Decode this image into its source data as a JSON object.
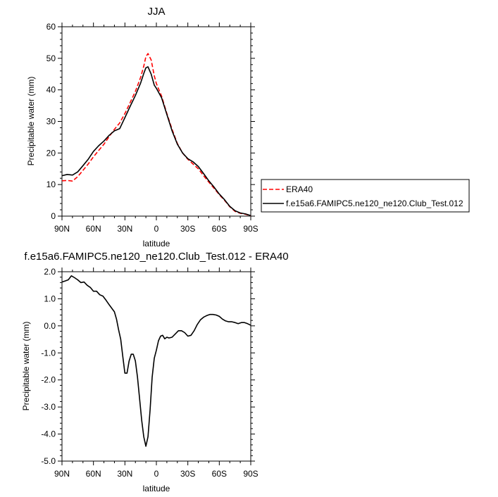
{
  "chart_data": [
    {
      "type": "line",
      "title": "JJA",
      "xlabel": "latitude",
      "ylabel": "Precipitable water (mm)",
      "xlim": [
        90,
        -90
      ],
      "ylim": [
        0,
        60
      ],
      "xticks": [
        90,
        60,
        30,
        0,
        -30,
        -60,
        -90
      ],
      "xtick_labels": [
        "90N",
        "60N",
        "30N",
        "0",
        "30S",
        "60S",
        "90S"
      ],
      "yticks": [
        0,
        10,
        20,
        30,
        40,
        50,
        60
      ],
      "ytick_labels": [
        "0",
        "10",
        "20",
        "30",
        "40",
        "50",
        "60"
      ],
      "legend": "outside-right",
      "series": [
        {
          "name": "ERA40",
          "color": "#ff0000",
          "dash": "dashed",
          "x": [
            90,
            85,
            80,
            75,
            70,
            65,
            60,
            55,
            50,
            45,
            40,
            35,
            30,
            25,
            20,
            15,
            12,
            10,
            8,
            5,
            2,
            0,
            -5,
            -10,
            -15,
            -20,
            -25,
            -30,
            -35,
            -40,
            -45,
            -50,
            -55,
            -60,
            -65,
            -70,
            -75,
            -80,
            -85,
            -90
          ],
          "y": [
            11.2,
            11.3,
            11.1,
            12.5,
            14.5,
            16.5,
            18.8,
            20.8,
            22.8,
            25.2,
            27.5,
            29.5,
            32.5,
            36,
            39.5,
            44,
            47.5,
            50.5,
            51.5,
            49.5,
            44.5,
            42,
            38,
            32.5,
            27.5,
            23,
            20,
            18,
            16.5,
            15,
            12.8,
            10.8,
            8.8,
            6.8,
            5,
            3,
            1.5,
            0.9,
            0.6,
            0.1
          ]
        },
        {
          "name": "f.e15a6.FAMIPC5.ne120_ne120.Club_Test.012",
          "color": "#000000",
          "dash": "solid",
          "x": [
            90,
            85,
            80,
            75,
            70,
            65,
            60,
            55,
            50,
            45,
            40,
            35,
            30,
            25,
            20,
            15,
            12,
            10,
            8,
            5,
            2,
            0,
            -5,
            -10,
            -15,
            -20,
            -25,
            -30,
            -35,
            -40,
            -45,
            -50,
            -55,
            -60,
            -65,
            -70,
            -75,
            -80,
            -85,
            -90
          ],
          "y": [
            12.8,
            13.2,
            13,
            14,
            16,
            18,
            20.5,
            22.3,
            23.8,
            25.6,
            27,
            27.7,
            31.2,
            34.8,
            38.2,
            42.2,
            45.2,
            47,
            47.3,
            45,
            41.5,
            40.5,
            37.5,
            32.2,
            27,
            22.8,
            20,
            18.2,
            17.2,
            15.7,
            13.5,
            11.2,
            9.2,
            7,
            5.2,
            3.1,
            1.7,
            1,
            0.7,
            0.15
          ]
        }
      ]
    },
    {
      "type": "line",
      "title": "f.e15a6.FAMIPC5.ne120_ne120.Club_Test.012 - ERA40",
      "xlabel": "latitude",
      "ylabel": "Precipitable water (mm)",
      "xlim": [
        90,
        -90
      ],
      "ylim": [
        -5,
        2
      ],
      "xticks": [
        90,
        60,
        30,
        0,
        -30,
        -60,
        -90
      ],
      "xtick_labels": [
        "90N",
        "60N",
        "30N",
        "0",
        "30S",
        "60S",
        "90S"
      ],
      "yticks": [
        2,
        1,
        0,
        -1,
        -2,
        -3,
        -4,
        -5
      ],
      "ytick_labels": [
        "2.0",
        "1.0",
        "0.0",
        "-1.0",
        "-2.0",
        "-3.0",
        "-4.0",
        "-5.0"
      ],
      "series": [
        {
          "color": "#000000",
          "dash": "solid",
          "x": [
            90,
            87,
            84,
            81,
            78,
            75,
            72,
            69,
            66,
            63,
            60,
            57,
            54,
            51,
            48,
            45,
            42,
            40,
            38,
            36,
            34,
            32,
            30,
            28,
            26,
            24,
            22,
            20,
            18,
            16,
            14,
            12,
            10,
            8,
            6,
            4,
            2,
            0,
            -2,
            -4,
            -6,
            -8,
            -10,
            -12,
            -15,
            -18,
            -21,
            -24,
            -27,
            -30,
            -33,
            -36,
            -39,
            -42,
            -45,
            -48,
            -51,
            -54,
            -57,
            -60,
            -63,
            -66,
            -69,
            -72,
            -75,
            -78,
            -81,
            -84,
            -87,
            -90
          ],
          "y": [
            1.62,
            1.66,
            1.7,
            1.85,
            1.78,
            1.7,
            1.6,
            1.62,
            1.5,
            1.42,
            1.28,
            1.28,
            1.15,
            1.1,
            0.95,
            0.78,
            0.62,
            0.52,
            0.25,
            -0.15,
            -0.5,
            -1.15,
            -1.75,
            -1.75,
            -1.3,
            -1.05,
            -1.05,
            -1.3,
            -1.9,
            -2.7,
            -3.5,
            -4.1,
            -4.45,
            -4.1,
            -3.1,
            -1.9,
            -1.2,
            -0.9,
            -0.55,
            -0.38,
            -0.35,
            -0.48,
            -0.42,
            -0.45,
            -0.42,
            -0.3,
            -0.18,
            -0.18,
            -0.25,
            -0.38,
            -0.35,
            -0.18,
            0.05,
            0.22,
            0.32,
            0.38,
            0.42,
            0.42,
            0.4,
            0.35,
            0.25,
            0.18,
            0.15,
            0.15,
            0.12,
            0.08,
            0.12,
            0.12,
            0.08,
            0.02
          ]
        }
      ]
    }
  ]
}
